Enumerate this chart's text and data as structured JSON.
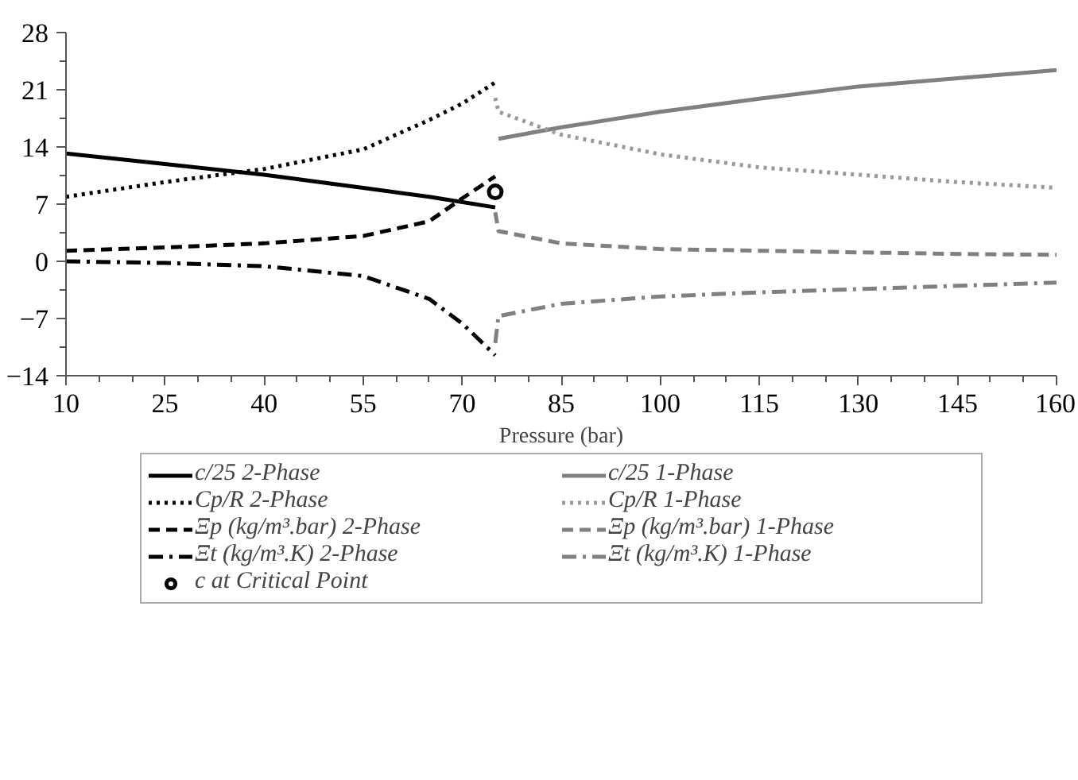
{
  "chart_data": {
    "type": "line",
    "xlabel": "Pressure (bar)",
    "xlim": [
      10,
      160
    ],
    "ylim": [
      -14,
      28
    ],
    "xticks": [
      10,
      25,
      40,
      55,
      70,
      85,
      100,
      115,
      130,
      145,
      160
    ],
    "yticks": [
      -14,
      -7,
      0,
      7,
      14,
      21,
      28
    ],
    "grid": false,
    "legend": "bottom",
    "series": [
      {
        "name": "c/25 2-Phase",
        "color": "#000000",
        "line_style": "solid",
        "x": [
          10,
          25,
          40,
          55,
          65,
          75
        ],
        "values": [
          13.2,
          11.9,
          10.6,
          9.0,
          7.9,
          6.6
        ]
      },
      {
        "name": "c/25 1-Phase",
        "color": "#808080",
        "line_style": "solid",
        "x": [
          75.5,
          85,
          100,
          115,
          130,
          145,
          160
        ],
        "values": [
          15.0,
          16.4,
          18.3,
          19.9,
          21.4,
          22.4,
          23.4
        ]
      },
      {
        "name": "Cp/R 2-Phase",
        "color": "#000000",
        "line_style": "dotted",
        "x": [
          10,
          25,
          40,
          55,
          65,
          70,
          75
        ],
        "values": [
          7.9,
          9.7,
          11.3,
          13.7,
          17.3,
          19.3,
          21.9
        ]
      },
      {
        "name": "Cp/R 1-Phase",
        "color": "#999999",
        "line_style": "dotted",
        "x": [
          75,
          75.5,
          85,
          100,
          115,
          130,
          145,
          160
        ],
        "values": [
          20.0,
          18.3,
          15.5,
          13.1,
          11.5,
          10.6,
          9.7,
          9.0
        ]
      },
      {
        "name": "Ξp (kg/m³.bar) 2-Phase",
        "color": "#000000",
        "line_style": "dashed",
        "x": [
          10,
          25,
          40,
          55,
          65,
          70,
          75
        ],
        "values": [
          1.3,
          1.7,
          2.2,
          3.1,
          4.9,
          7.7,
          10.4
        ]
      },
      {
        "name": "Ξp (kg/m³.bar) 1-Phase",
        "color": "#808080",
        "line_style": "dashed",
        "x": [
          75,
          75.5,
          85,
          100,
          115,
          130,
          145,
          160
        ],
        "values": [
          6.0,
          3.7,
          2.2,
          1.5,
          1.3,
          1.1,
          0.9,
          0.8
        ]
      },
      {
        "name": "Ξt (kg/m³.K) 2-Phase",
        "color": "#000000",
        "line_style": "dashdot",
        "x": [
          10,
          25,
          40,
          55,
          65,
          70,
          75
        ],
        "values": [
          0.0,
          -0.2,
          -0.6,
          -1.8,
          -4.6,
          -7.6,
          -11.5
        ]
      },
      {
        "name": "Ξt (kg/m³.K) 1-Phase",
        "color": "#808080",
        "line_style": "dashdot",
        "x": [
          75,
          75.5,
          85,
          100,
          115,
          130,
          145,
          160
        ],
        "values": [
          -10.0,
          -6.7,
          -5.2,
          -4.3,
          -3.8,
          -3.4,
          -3.0,
          -2.6
        ]
      },
      {
        "name": "c at Critical Point",
        "type": "scatter",
        "marker": "circle",
        "color": "#000000",
        "x": [
          75
        ],
        "values": [
          8.5
        ]
      }
    ]
  }
}
